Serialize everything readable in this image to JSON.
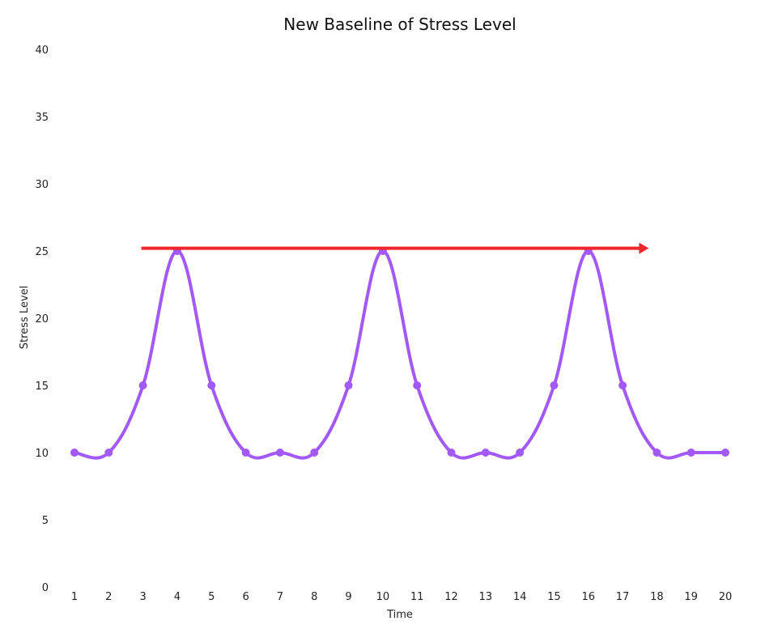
{
  "chart_data": {
    "type": "line",
    "title": "New Baseline of Stress Level",
    "xlabel": "Time",
    "ylabel": "Stress Level",
    "categories": [
      "1",
      "2",
      "3",
      "4",
      "5",
      "6",
      "7",
      "8",
      "9",
      "10",
      "11",
      "12",
      "13",
      "14",
      "15",
      "16",
      "17",
      "18",
      "19",
      "20"
    ],
    "yticks": [
      "0",
      "5",
      "10",
      "15",
      "20",
      "25",
      "30",
      "35",
      "40"
    ],
    "ylim": [
      0,
      40
    ],
    "grid": false,
    "legend": "none",
    "series": [
      {
        "color": "#a259f7",
        "smooth": true,
        "values": [
          10,
          10,
          15,
          25,
          15,
          10,
          10,
          10,
          15,
          25,
          15,
          10,
          10,
          10,
          15,
          25,
          15,
          10,
          10,
          10
        ]
      }
    ],
    "annotations": [
      {
        "type": "arrow",
        "color": "#f0282d",
        "y": 25.2,
        "x_from": 3,
        "x_to": 18
      }
    ]
  }
}
